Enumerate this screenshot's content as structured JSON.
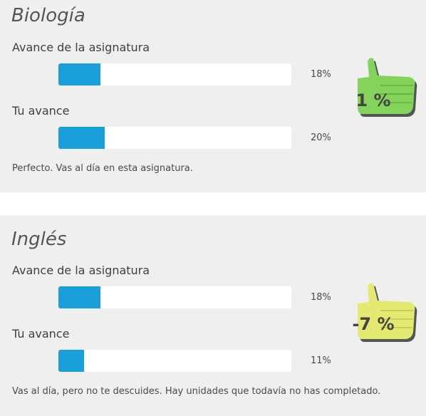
{
  "subjects": [
    {
      "title": "Biología",
      "subject_label": "Avance de la asignatura",
      "subject_progress": 18,
      "subject_progress_text": "18%",
      "your_label": "Tu avance",
      "your_progress": 20,
      "your_progress_text": "20%",
      "difference": "1 %",
      "message": "Perfecto. Vas al día en esta asignatura.",
      "badge_color": "#84d45b"
    },
    {
      "title": "Inglés",
      "subject_label": "Avance de la asignatura",
      "subject_progress": 18,
      "subject_progress_text": "18%",
      "your_label": "Tu avance",
      "your_progress": 11,
      "your_progress_text": "11%",
      "difference": "-7 %",
      "message": "Vas al día, pero no te descuides. Hay unidades que todavía no has completado.",
      "badge_color": "#e4ea71"
    }
  ],
  "icons": {
    "badge": "thumbs-up-icon"
  },
  "colors": {
    "progress_fill": "#1a9fda",
    "card_bg": "#efefef"
  }
}
